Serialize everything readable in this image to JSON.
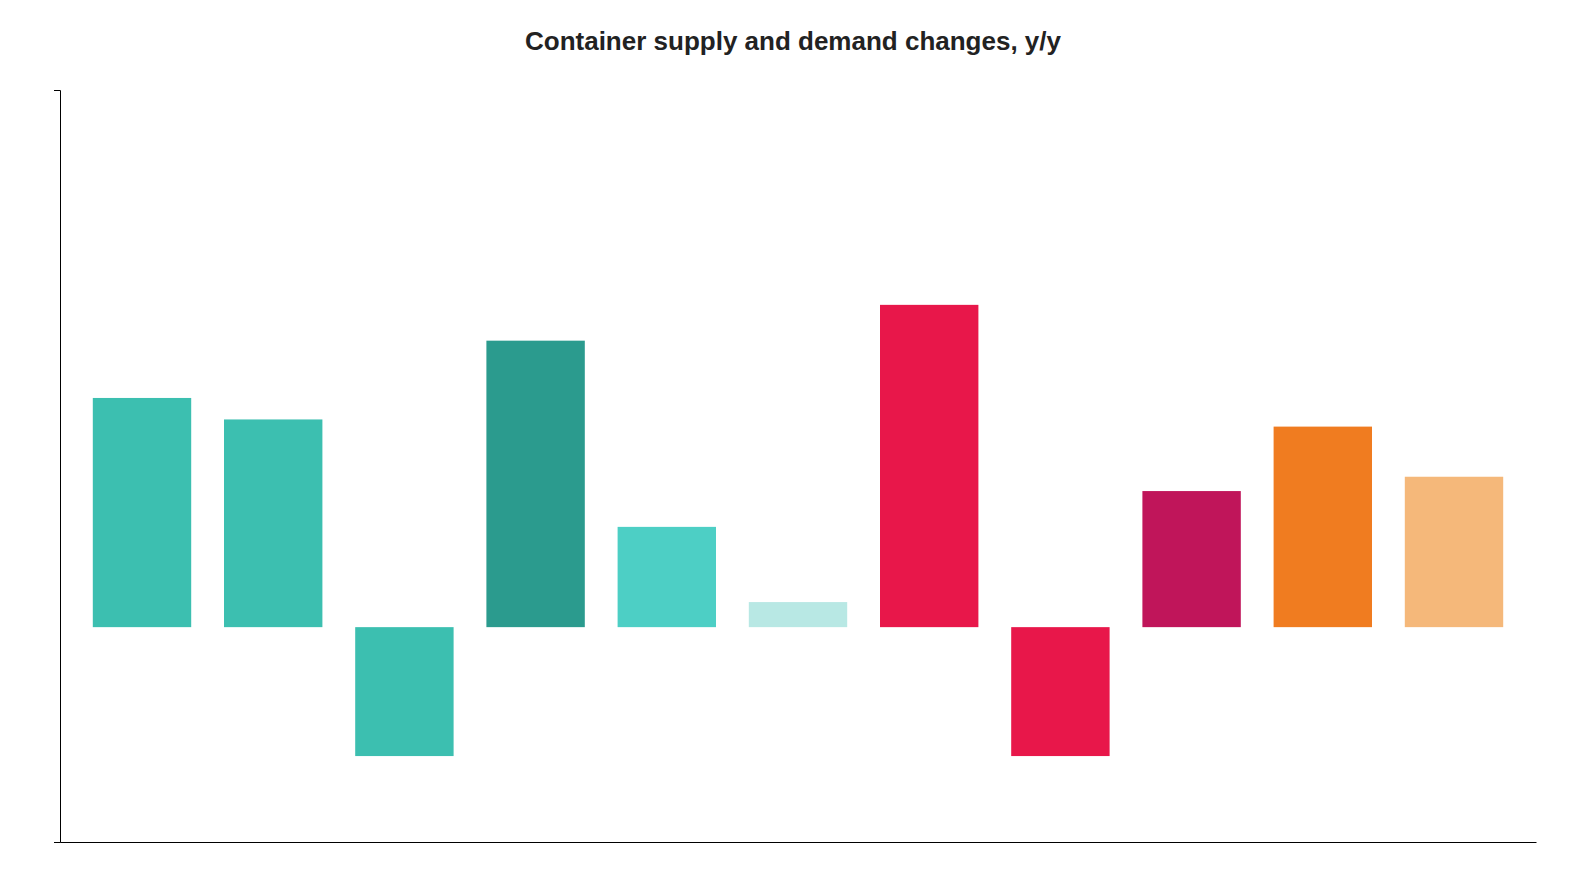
{
  "chart_data": {
    "type": "bar",
    "title": "Container supply and demand changes,  y/y",
    "categories": [
      null,
      null,
      null,
      null,
      null,
      null,
      null,
      null,
      null,
      null,
      null
    ],
    "values": [
      3.2,
      2.9,
      -1.8,
      4.0,
      1.4,
      0.35,
      4.5,
      -1.8,
      1.9,
      2.8,
      2.1
    ],
    "colors": [
      "#3CBFB0",
      "#3CBFB0",
      "#3CBFB0",
      "#2B9B8E",
      "#4DCFC5",
      "#B8E8E4",
      "#E8174A",
      "#E8174A",
      "#C0155A",
      "#F07C20",
      "#F5B87A"
    ],
    "ylim": [
      -3.0,
      7.5
    ],
    "tick_labels": false
  }
}
